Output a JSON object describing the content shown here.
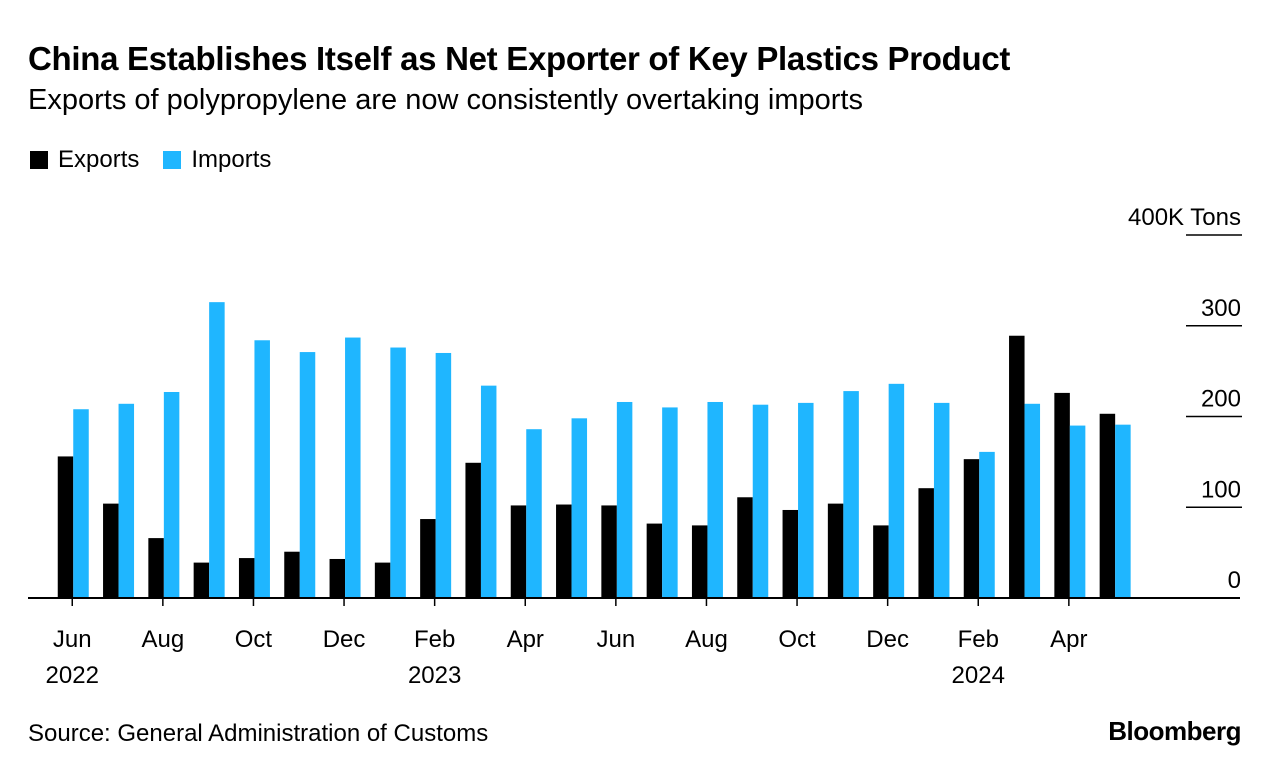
{
  "header": {
    "title": "China Establishes Itself as Net Exporter of Key Plastics Product",
    "subtitle": "Exports of polypropylene are now consistently overtaking imports"
  },
  "legend": {
    "exports_label": "Exports",
    "imports_label": "Imports"
  },
  "colors": {
    "exports": "#000000",
    "imports": "#1fb6ff",
    "gridline": "#000000"
  },
  "footer": {
    "source": "Source: General Administration of Customs",
    "brand": "Bloomberg"
  },
  "chart_data": {
    "type": "bar",
    "title": "China Establishes Itself as Net Exporter of Key Plastics Product",
    "subtitle": "Exports of polypropylene are now consistently overtaking imports",
    "unit_label": "400K Tons",
    "categories": [
      "Jun 2022",
      "Jul 2022",
      "Aug 2022",
      "Sep 2022",
      "Oct 2022",
      "Nov 2022",
      "Dec 2022",
      "Jan 2023",
      "Feb 2023",
      "Mar 2023",
      "Apr 2023",
      "May 2023",
      "Jun 2023",
      "Jul 2023",
      "Aug 2023",
      "Sep 2023",
      "Oct 2023",
      "Nov 2023",
      "Dec 2023",
      "Jan 2024",
      "Feb 2024",
      "Mar 2024",
      "Apr 2024",
      "May 2024"
    ],
    "series": [
      {
        "name": "Exports",
        "values": [
          156,
          104,
          66,
          39,
          44,
          51,
          43,
          39,
          87,
          149,
          102,
          103,
          102,
          82,
          80,
          111,
          97,
          104,
          80,
          121,
          153,
          289,
          226,
          203
        ]
      },
      {
        "name": "Imports",
        "values": [
          208,
          214,
          227,
          326,
          284,
          271,
          287,
          276,
          270,
          234,
          186,
          198,
          216,
          210,
          216,
          213,
          215,
          228,
          236,
          215,
          161,
          214,
          190,
          191
        ]
      }
    ],
    "ylim": [
      0,
      400
    ],
    "yticks": [
      0,
      100,
      200,
      300,
      400
    ],
    "ytick_labels": [
      "0",
      "100",
      "200",
      "300",
      "400K Tons"
    ],
    "xtick_labels": [
      {
        "index": 0,
        "month": "Jun",
        "year": "2022"
      },
      {
        "index": 2,
        "month": "Aug",
        "year": ""
      },
      {
        "index": 4,
        "month": "Oct",
        "year": ""
      },
      {
        "index": 6,
        "month": "Dec",
        "year": ""
      },
      {
        "index": 8,
        "month": "Feb",
        "year": "2023"
      },
      {
        "index": 10,
        "month": "Apr",
        "year": ""
      },
      {
        "index": 12,
        "month": "Jun",
        "year": ""
      },
      {
        "index": 14,
        "month": "Aug",
        "year": ""
      },
      {
        "index": 16,
        "month": "Oct",
        "year": ""
      },
      {
        "index": 18,
        "month": "Dec",
        "year": ""
      },
      {
        "index": 20,
        "month": "Feb",
        "year": "2024"
      },
      {
        "index": 22,
        "month": "Apr",
        "year": ""
      }
    ],
    "grid": true,
    "legend_position": "top-left"
  }
}
